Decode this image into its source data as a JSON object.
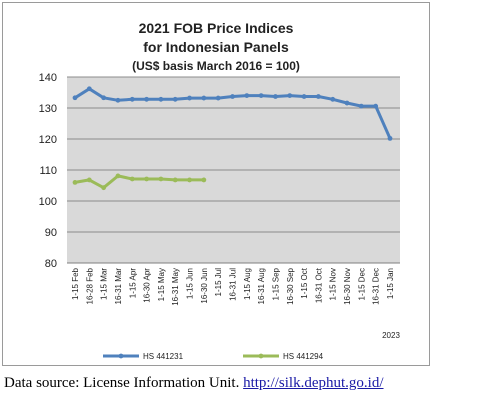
{
  "chart_data": {
    "type": "line",
    "title": "2021 FOB Price Indices",
    "subtitle": "for Indonesian Panels",
    "subtitle2": "(US$ basis March 2016 = 100)",
    "xlabel": "",
    "ylabel": "",
    "ylim": [
      80,
      140
    ],
    "y_ticks": [
      80,
      90,
      100,
      110,
      120,
      130,
      140
    ],
    "grid": true,
    "legend_position": "bottom",
    "categories": [
      "1-15 Feb",
      "16-28 Feb",
      "1-15 Mar",
      "16-31 Mar",
      "1-15 Apr",
      "16-30 Apr",
      "1-15 May",
      "16-31 May",
      "1-15 Jun",
      "16-30 Jun",
      "1-15 Jul",
      "16-31 Jul",
      "1-15 Aug",
      "16-31 Aug",
      "1-15 Sep",
      "16-30 Sep",
      "1-15 Oct",
      "16-31 Oct",
      "1-15 Nov",
      "16-30 Nov",
      "1-15 Dec",
      "16-31 Dec",
      "1-15 Jan"
    ],
    "year_label": "2023",
    "series": [
      {
        "name": "HS 441231",
        "color": "#4f81bd",
        "values": [
          133.3,
          136.2,
          133.3,
          132.5,
          132.8,
          132.8,
          132.8,
          132.8,
          133.2,
          133.2,
          133.2,
          133.7,
          134.0,
          134.0,
          133.7,
          134.0,
          133.7,
          133.7,
          132.8,
          131.6,
          130.6,
          130.6,
          120.2
        ]
      },
      {
        "name": "HS 441294",
        "color": "#9bbb59",
        "values": [
          106.0,
          106.8,
          104.3,
          108.1,
          107.1,
          107.1,
          107.1,
          106.8,
          106.8,
          106.8,
          null,
          null,
          null,
          null,
          null,
          null,
          null,
          null,
          null,
          null,
          null,
          null,
          null
        ]
      }
    ]
  },
  "source_text": "Data source: License Information Unit. ",
  "source_link": "http://silk.dephut.go.id/"
}
